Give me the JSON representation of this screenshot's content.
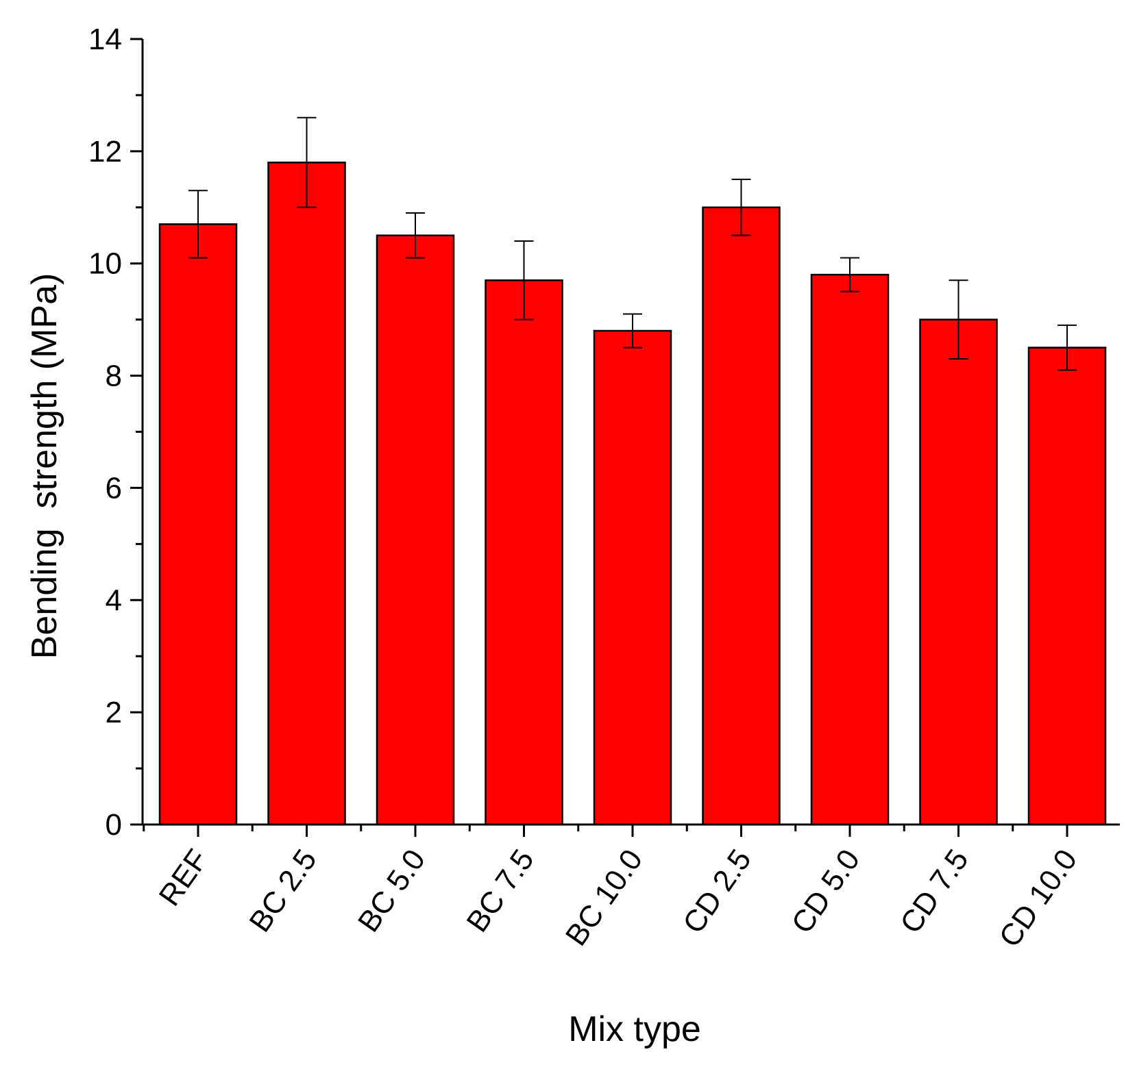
{
  "chart_data": {
    "type": "bar",
    "title": "",
    "xlabel": "Mix type",
    "ylabel": "Bending  strength (MPa)",
    "ylim": [
      0,
      14
    ],
    "yticks": [
      "0",
      "2",
      "4",
      "6",
      "8",
      "10",
      "12",
      "14"
    ],
    "categories": [
      "REF",
      "BC 2.5",
      "BC 5.0",
      "BC 7.5",
      "BC 10.0",
      "CD 2.5",
      "CD 5.0",
      "CD 7.5",
      "CD 10.0"
    ],
    "values": [
      10.7,
      11.8,
      10.5,
      9.7,
      8.8,
      11.0,
      9.8,
      9.0,
      8.5
    ],
    "error": [
      0.6,
      0.8,
      0.4,
      0.7,
      0.3,
      0.5,
      0.3,
      0.7,
      0.4
    ],
    "grid": false,
    "legend": "none",
    "bar_color": "#ff0000"
  }
}
